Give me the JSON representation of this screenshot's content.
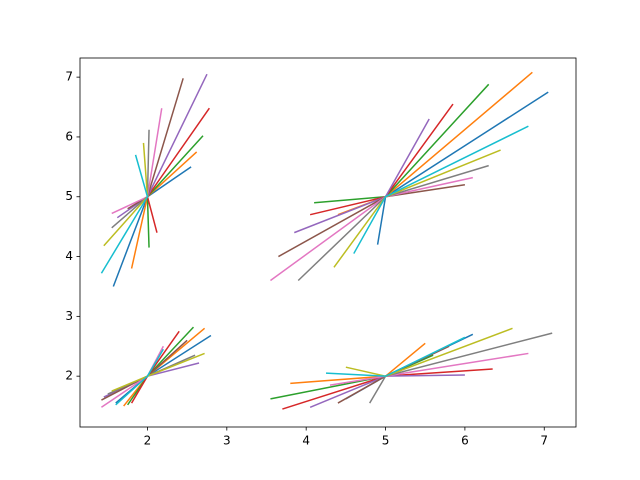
{
  "chart_data": {
    "type": "line",
    "grid": false,
    "xlim": [
      1.15,
      7.4
    ],
    "ylim": [
      1.15,
      7.32
    ],
    "xticks": [
      2,
      3,
      4,
      5,
      6,
      7
    ],
    "yticks": [
      2,
      3,
      4,
      5,
      6,
      7
    ],
    "series": [
      {
        "color": "#1f77b4",
        "x": [
          1.57,
          2,
          2.55
        ],
        "values": [
          3.5,
          5,
          5.5
        ]
      },
      {
        "color": "#ff7f0e",
        "x": [
          1.8,
          2,
          2.62
        ],
        "values": [
          3.8,
          5,
          5.75
        ]
      },
      {
        "color": "#2ca02c",
        "x": [
          2.02,
          2,
          2.7
        ],
        "values": [
          4.15,
          5,
          6.02
        ]
      },
      {
        "color": "#d62728",
        "x": [
          2.12,
          2,
          2.78
        ],
        "values": [
          4.4,
          5,
          6.48
        ]
      },
      {
        "color": "#9467bd",
        "x": [
          1.62,
          2,
          2.75
        ],
        "values": [
          4.65,
          5,
          7.05
        ]
      },
      {
        "color": "#8c564b",
        "x": [
          1.75,
          2,
          2.45
        ],
        "values": [
          4.8,
          5,
          6.98
        ]
      },
      {
        "color": "#e377c2",
        "x": [
          1.55,
          2,
          2.18
        ],
        "values": [
          4.72,
          5,
          6.48
        ]
      },
      {
        "color": "#7f7f7f",
        "x": [
          1.55,
          2,
          2.02
        ],
        "values": [
          4.48,
          5,
          6.12
        ]
      },
      {
        "color": "#bcbd22",
        "x": [
          1.45,
          2,
          1.95
        ],
        "values": [
          4.18,
          5,
          5.9
        ]
      },
      {
        "color": "#17becf",
        "x": [
          1.42,
          2,
          1.85
        ],
        "values": [
          3.72,
          5,
          5.7
        ]
      },
      {
        "color": "#1f77b4",
        "x": [
          4.9,
          5,
          7.05
        ],
        "values": [
          4.2,
          5,
          6.75
        ]
      },
      {
        "color": "#ff7f0e",
        "x": [
          4.4,
          5,
          6.85
        ],
        "values": [
          4.7,
          5,
          7.08
        ]
      },
      {
        "color": "#2ca02c",
        "x": [
          4.1,
          5,
          6.3
        ],
        "values": [
          4.9,
          5,
          6.88
        ]
      },
      {
        "color": "#d62728",
        "x": [
          4.05,
          5,
          5.85
        ],
        "values": [
          4.7,
          5,
          6.55
        ]
      },
      {
        "color": "#9467bd",
        "x": [
          3.85,
          5,
          5.55
        ],
        "values": [
          4.4,
          5,
          6.3
        ]
      },
      {
        "color": "#8c564b",
        "x": [
          3.65,
          5,
          6.0
        ],
        "values": [
          4.0,
          5,
          5.2
        ]
      },
      {
        "color": "#e377c2",
        "x": [
          3.55,
          5,
          6.1
        ],
        "values": [
          3.6,
          5,
          5.32
        ]
      },
      {
        "color": "#7f7f7f",
        "x": [
          3.9,
          5,
          6.3
        ],
        "values": [
          3.6,
          5,
          5.52
        ]
      },
      {
        "color": "#bcbd22",
        "x": [
          4.35,
          5,
          6.45
        ],
        "values": [
          3.82,
          5,
          5.78
        ]
      },
      {
        "color": "#17becf",
        "x": [
          4.6,
          5,
          6.8
        ],
        "values": [
          4.05,
          5,
          6.18
        ]
      },
      {
        "color": "#1f77b4",
        "x": [
          1.6,
          2,
          2.8
        ],
        "values": [
          1.55,
          2,
          2.68
        ]
      },
      {
        "color": "#ff7f0e",
        "x": [
          1.7,
          2,
          2.72
        ],
        "values": [
          1.5,
          2,
          2.8
        ]
      },
      {
        "color": "#2ca02c",
        "x": [
          1.75,
          2,
          2.58
        ],
        "values": [
          1.52,
          2,
          2.82
        ]
      },
      {
        "color": "#d62728",
        "x": [
          1.8,
          2,
          2.4
        ],
        "values": [
          1.55,
          2,
          2.75
        ]
      },
      {
        "color": "#9467bd",
        "x": [
          1.45,
          2,
          2.65
        ],
        "values": [
          1.65,
          2,
          2.22
        ]
      },
      {
        "color": "#8c564b",
        "x": [
          1.42,
          2,
          2.5
        ],
        "values": [
          1.6,
          2,
          2.6
        ]
      },
      {
        "color": "#e377c2",
        "x": [
          1.42,
          2,
          2.2
        ],
        "values": [
          1.48,
          2,
          2.5
        ]
      },
      {
        "color": "#7f7f7f",
        "x": [
          1.5,
          2,
          2.6
        ],
        "values": [
          1.7,
          2,
          2.35
        ]
      },
      {
        "color": "#bcbd22",
        "x": [
          1.55,
          2,
          2.72
        ],
        "values": [
          1.75,
          2,
          2.38
        ]
      },
      {
        "color": "#17becf",
        "x": [
          1.6,
          2,
          2.2
        ],
        "values": [
          1.52,
          2,
          2.45
        ]
      },
      {
        "color": "#1f77b4",
        "x": [
          4.5,
          5,
          6.1
        ],
        "values": [
          1.62,
          2,
          2.7
        ]
      },
      {
        "color": "#ff7f0e",
        "x": [
          3.8,
          5,
          5.5
        ],
        "values": [
          1.88,
          2,
          2.55
        ]
      },
      {
        "color": "#2ca02c",
        "x": [
          3.55,
          5,
          5.6
        ],
        "values": [
          1.62,
          2,
          2.35
        ]
      },
      {
        "color": "#d62728",
        "x": [
          3.7,
          5,
          6.35
        ],
        "values": [
          1.45,
          2,
          2.12
        ]
      },
      {
        "color": "#9467bd",
        "x": [
          4.05,
          5,
          6.0
        ],
        "values": [
          1.48,
          2,
          2.02
        ]
      },
      {
        "color": "#8c564b",
        "x": [
          4.4,
          5,
          5.8
        ],
        "values": [
          1.55,
          2,
          2.5
        ]
      },
      {
        "color": "#e377c2",
        "x": [
          4.3,
          5,
          6.8
        ],
        "values": [
          1.85,
          2,
          2.38
        ]
      },
      {
        "color": "#7f7f7f",
        "x": [
          4.8,
          5,
          7.1
        ],
        "values": [
          1.55,
          2,
          2.72
        ]
      },
      {
        "color": "#bcbd22",
        "x": [
          4.5,
          5,
          6.6
        ],
        "values": [
          2.15,
          2,
          2.8
        ]
      },
      {
        "color": "#17becf",
        "x": [
          4.25,
          5,
          6.0
        ],
        "values": [
          2.05,
          2,
          2.65
        ]
      }
    ]
  }
}
